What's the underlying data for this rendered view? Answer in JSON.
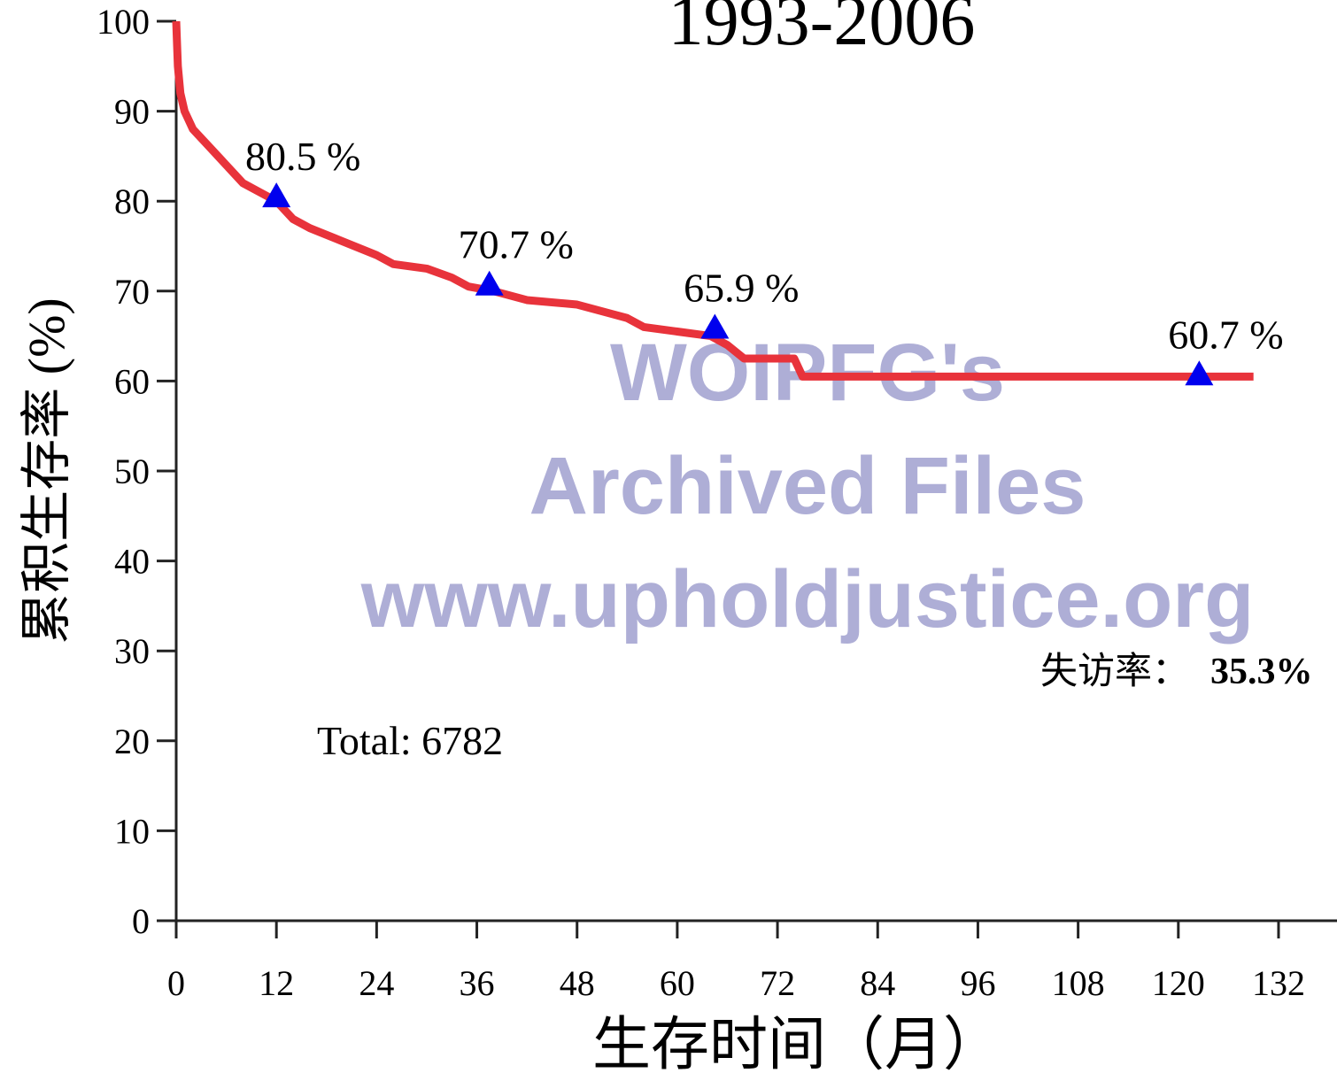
{
  "chart_data": {
    "type": "line",
    "title": "1993-2006",
    "y_label": "累积生存率 (%)",
    "x_label": "生存时间（月）",
    "annotations": {
      "total": "Total: 6782",
      "loss_label": "失访率：",
      "loss_value": "35.3%"
    },
    "watermark": [
      "WOIPFG's",
      "Archived Files",
      "www.upholdjustice.org"
    ],
    "xlim": [
      0,
      139
    ],
    "ylim": [
      0,
      100
    ],
    "xticks": [
      0,
      12,
      24,
      36,
      48,
      60,
      72,
      84,
      96,
      108,
      120,
      132
    ],
    "yticks": [
      0,
      10,
      20,
      30,
      40,
      50,
      60,
      70,
      80,
      90,
      100
    ],
    "series": [
      {
        "color": "#e8333b",
        "x": [
          0,
          0.2,
          0.5,
          1,
          2,
          4,
          6,
          8,
          10,
          12,
          14,
          16,
          20,
          24,
          26,
          30,
          33,
          35,
          38,
          42,
          48,
          52,
          54,
          56,
          60,
          64,
          66,
          68,
          74,
          75,
          129
        ],
        "values": [
          100,
          95,
          92,
          90,
          88,
          86,
          84,
          82,
          81,
          80,
          78,
          77,
          75.5,
          74,
          73,
          72.5,
          71.5,
          70.5,
          70,
          69,
          68.5,
          67.5,
          67,
          66,
          65.5,
          65,
          64,
          62.5,
          62.5,
          60.5,
          60.5
        ]
      }
    ],
    "markers": {
      "color": "#0000ee",
      "x": [
        12,
        37.5,
        64.5,
        122.5
      ],
      "values": [
        80.5,
        70.7,
        65.9,
        60.7
      ],
      "value_labels": [
        "80.5 %",
        "70.7 %",
        "65.9 %",
        "60.7 %"
      ]
    }
  }
}
